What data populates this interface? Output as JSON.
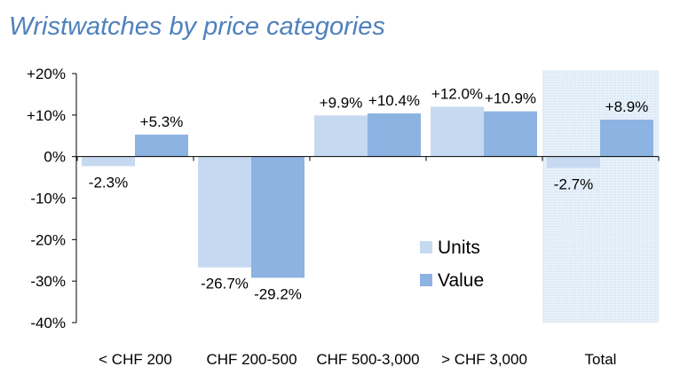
{
  "chart_data": {
    "type": "bar",
    "title": "Wristwatches by price categories",
    "xlabel": "",
    "ylabel": "",
    "ylim": [
      -40,
      20
    ],
    "yticks": [
      20,
      10,
      0,
      -10,
      -20,
      -30,
      -40
    ],
    "ytick_labels": [
      "+20%",
      "+10%",
      "0%",
      "-10%",
      "-20%",
      "-30%",
      "-40%"
    ],
    "categories": [
      "< CHF 200",
      "CHF 200-500",
      "CHF 500-3,000",
      "> CHF 3,000",
      "Total"
    ],
    "series": [
      {
        "name": "Units",
        "color": "#c6d9f1",
        "values": [
          -2.3,
          -26.7,
          9.9,
          12.0,
          -2.7
        ],
        "labels": [
          "-2.3%",
          "-26.7%",
          "+9.9%",
          "+12.0%",
          "-2.7%"
        ]
      },
      {
        "name": "Value",
        "color": "#8db3e2",
        "values": [
          5.3,
          -29.2,
          10.4,
          10.9,
          8.9
        ],
        "labels": [
          "+5.3%",
          "-29.2%",
          "+10.4%",
          "+10.9%",
          "+8.9%"
        ]
      }
    ],
    "highlight_category": "Total",
    "legend_position": "center-right",
    "grid": false
  }
}
